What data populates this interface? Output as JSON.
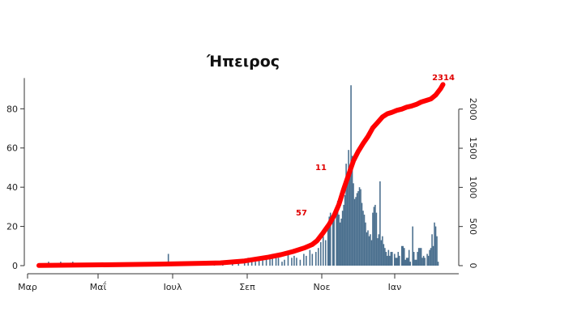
{
  "chart_data": {
    "type": "bar+line",
    "title": "Ήπειρος",
    "x_ticks": [
      "Μαρ",
      "Μαΐ",
      "Ιουλ",
      "Σεπ",
      "Νοε",
      "Ιαν"
    ],
    "y_left_ticks": [
      0,
      20,
      40,
      60,
      80
    ],
    "y_left_range": [
      0,
      95
    ],
    "y_right_ticks": [
      0,
      500,
      1000,
      1500,
      2000
    ],
    "y_right_range": [
      0,
      2380
    ],
    "n_days": 335,
    "bar_color": "#4a6f8e",
    "line_color": "#ff0000",
    "daily_cases": [
      [
        8,
        2
      ],
      [
        12,
        1
      ],
      [
        18,
        2
      ],
      [
        22,
        1
      ],
      [
        28,
        2
      ],
      [
        35,
        1
      ],
      [
        42,
        1
      ],
      [
        50,
        1
      ],
      [
        60,
        1
      ],
      [
        75,
        1
      ],
      [
        100,
        1
      ],
      [
        107,
        6
      ],
      [
        115,
        1
      ],
      [
        125,
        2
      ],
      [
        138,
        2
      ],
      [
        145,
        2
      ],
      [
        152,
        2
      ],
      [
        160,
        1
      ],
      [
        165,
        2
      ],
      [
        170,
        3
      ],
      [
        173,
        4
      ],
      [
        176,
        3
      ],
      [
        179,
        2
      ],
      [
        182,
        4
      ],
      [
        185,
        3
      ],
      [
        188,
        5
      ],
      [
        191,
        4
      ],
      [
        193,
        6
      ],
      [
        196,
        5
      ],
      [
        198,
        4
      ],
      [
        201,
        2
      ],
      [
        203,
        3
      ],
      [
        206,
        7
      ],
      [
        209,
        4
      ],
      [
        211,
        5
      ],
      [
        213,
        4
      ],
      [
        216,
        3
      ],
      [
        219,
        6
      ],
      [
        221,
        5
      ],
      [
        224,
        8
      ],
      [
        226,
        6
      ],
      [
        229,
        7
      ],
      [
        231,
        9
      ],
      [
        233,
        12
      ],
      [
        235,
        15
      ],
      [
        237,
        13
      ],
      [
        239,
        22
      ],
      [
        240,
        25
      ],
      [
        241,
        27
      ],
      [
        243,
        23
      ],
      [
        244,
        25
      ],
      [
        246,
        29
      ],
      [
        247,
        33
      ],
      [
        248,
        26
      ],
      [
        249,
        22
      ],
      [
        250,
        24
      ],
      [
        251,
        28
      ],
      [
        252,
        31
      ],
      [
        253,
        36
      ],
      [
        254,
        52
      ],
      [
        255,
        45
      ],
      [
        256,
        59
      ],
      [
        257,
        50
      ],
      [
        258,
        92
      ],
      [
        259,
        56
      ],
      [
        260,
        42
      ],
      [
        261,
        34
      ],
      [
        262,
        35
      ],
      [
        263,
        37
      ],
      [
        264,
        38
      ],
      [
        265,
        40
      ],
      [
        266,
        39
      ],
      [
        267,
        32
      ],
      [
        268,
        28
      ],
      [
        269,
        26
      ],
      [
        270,
        22
      ],
      [
        271,
        17
      ],
      [
        272,
        18
      ],
      [
        273,
        15
      ],
      [
        274,
        16
      ],
      [
        275,
        13
      ],
      [
        276,
        27
      ],
      [
        277,
        30
      ],
      [
        278,
        31
      ],
      [
        279,
        27
      ],
      [
        280,
        14
      ],
      [
        281,
        16
      ],
      [
        282,
        43
      ],
      [
        283,
        13
      ],
      [
        284,
        15
      ],
      [
        285,
        11
      ],
      [
        286,
        9
      ],
      [
        287,
        7
      ],
      [
        288,
        5
      ],
      [
        289,
        8
      ],
      [
        290,
        5
      ],
      [
        291,
        7
      ],
      [
        292,
        7
      ],
      [
        294,
        6
      ],
      [
        295,
        4
      ],
      [
        296,
        4
      ],
      [
        297,
        7
      ],
      [
        298,
        5
      ],
      [
        300,
        10
      ],
      [
        301,
        10
      ],
      [
        302,
        9
      ],
      [
        303,
        3
      ],
      [
        304,
        4
      ],
      [
        305,
        4
      ],
      [
        306,
        8
      ],
      [
        307,
        2
      ],
      [
        309,
        20
      ],
      [
        310,
        7
      ],
      [
        311,
        3
      ],
      [
        312,
        3
      ],
      [
        313,
        7
      ],
      [
        314,
        9
      ],
      [
        315,
        9
      ],
      [
        316,
        9
      ],
      [
        317,
        4
      ],
      [
        318,
        5
      ],
      [
        319,
        4
      ],
      [
        321,
        6
      ],
      [
        322,
        5
      ],
      [
        323,
        8
      ],
      [
        324,
        9
      ],
      [
        325,
        16
      ],
      [
        326,
        10
      ],
      [
        327,
        22
      ],
      [
        328,
        20
      ],
      [
        329,
        15
      ],
      [
        330,
        2
      ]
    ],
    "cumulative": [
      [
        0,
        2
      ],
      [
        50,
        10
      ],
      [
        100,
        20
      ],
      [
        150,
        35
      ],
      [
        170,
        60
      ],
      [
        190,
        110
      ],
      [
        200,
        140
      ],
      [
        210,
        180
      ],
      [
        220,
        230
      ],
      [
        226,
        270
      ],
      [
        230,
        320
      ],
      [
        235,
        420
      ],
      [
        240,
        530
      ],
      [
        244,
        640
      ],
      [
        248,
        780
      ],
      [
        252,
        980
      ],
      [
        256,
        1160
      ],
      [
        260,
        1340
      ],
      [
        264,
        1460
      ],
      [
        268,
        1560
      ],
      [
        272,
        1650
      ],
      [
        276,
        1760
      ],
      [
        280,
        1830
      ],
      [
        284,
        1900
      ],
      [
        288,
        1940
      ],
      [
        292,
        1960
      ],
      [
        296,
        1985
      ],
      [
        300,
        2000
      ],
      [
        304,
        2025
      ],
      [
        308,
        2040
      ],
      [
        312,
        2060
      ],
      [
        316,
        2090
      ],
      [
        320,
        2110
      ],
      [
        324,
        2130
      ],
      [
        328,
        2180
      ],
      [
        332,
        2260
      ],
      [
        334,
        2314
      ]
    ],
    "annotations": [
      "57",
      "11",
      "2314"
    ]
  }
}
